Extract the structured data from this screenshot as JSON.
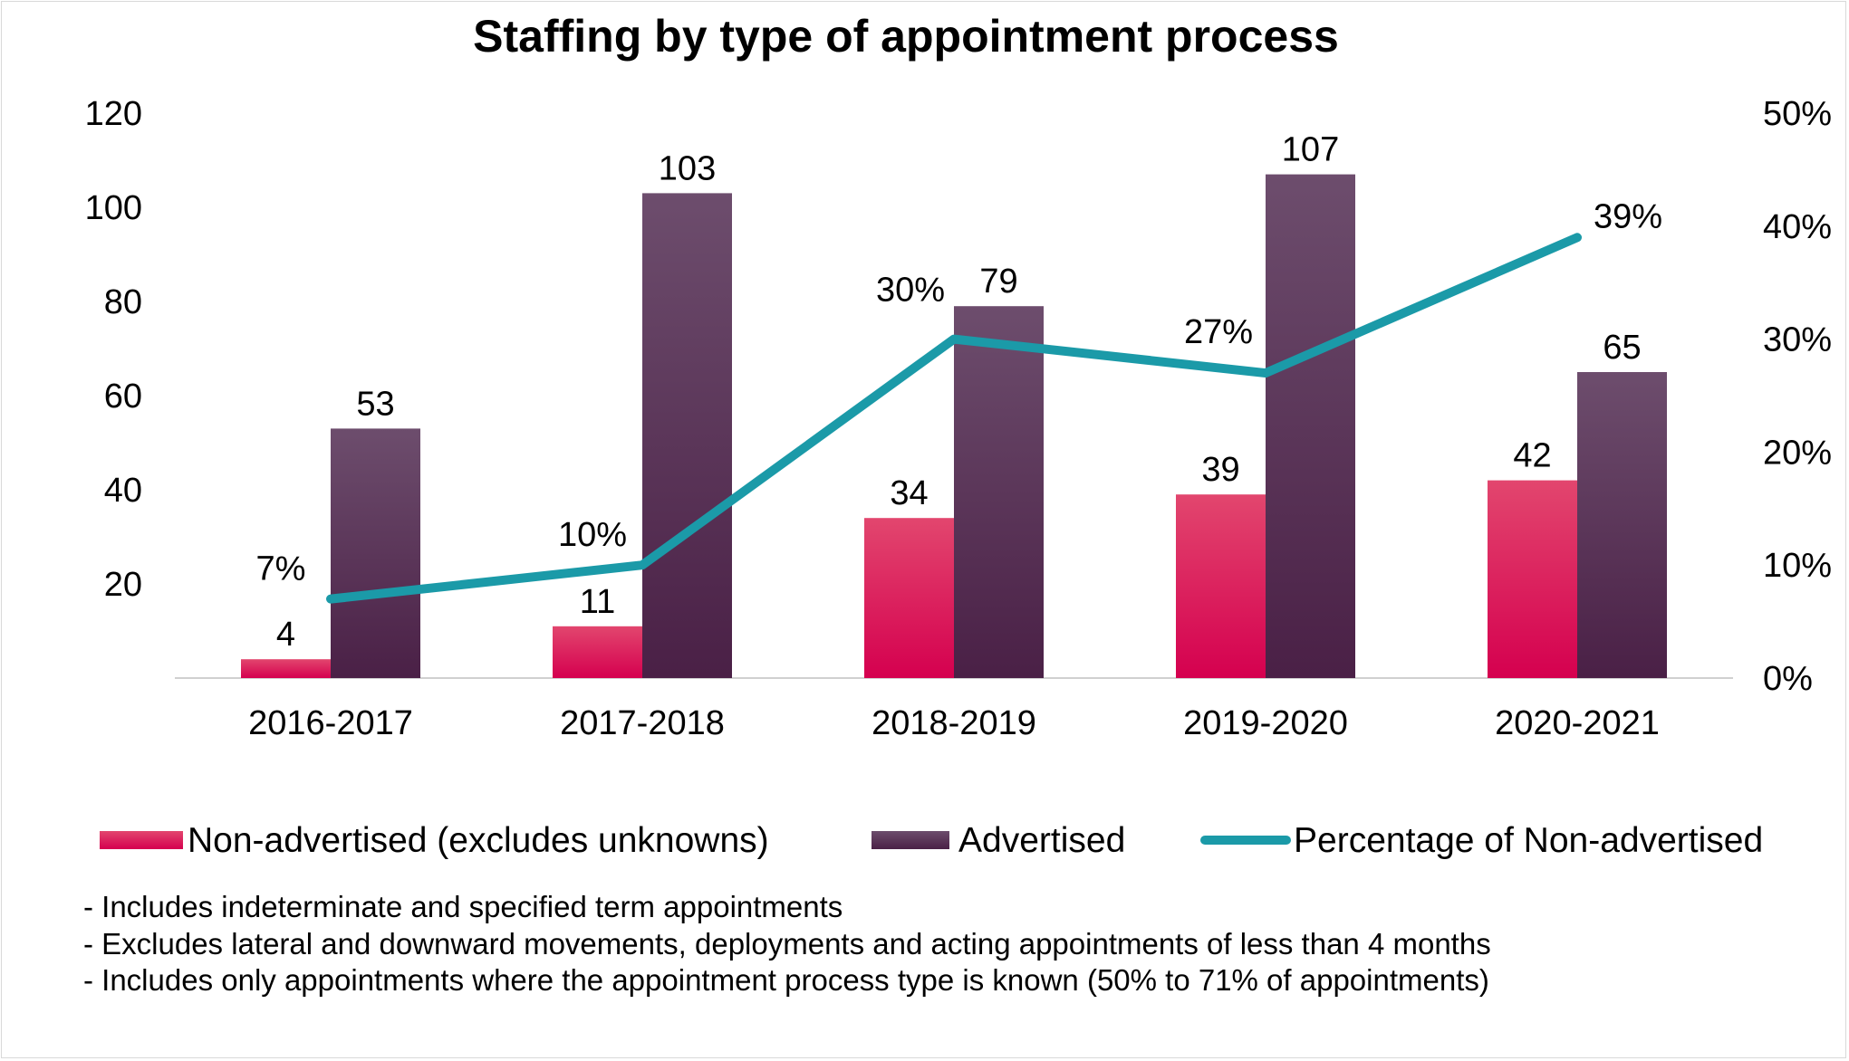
{
  "chart_data": {
    "type": "bar",
    "title": "Staffing by type of appointment process",
    "categories": [
      "2016-2017",
      "2017-2018",
      "2018-2019",
      "2019-2020",
      "2020-2021"
    ],
    "ylim": [
      0,
      120
    ],
    "yticks": [
      20,
      40,
      60,
      80,
      100,
      120
    ],
    "y2lim": [
      0,
      0.5
    ],
    "y2ticks": [
      "0%",
      "10%",
      "20%",
      "30%",
      "40%",
      "50%"
    ],
    "y2tick_values": [
      0,
      0.1,
      0.2,
      0.3,
      0.4,
      0.5
    ],
    "series": [
      {
        "name": "Non-advertised (excludes unknowns)",
        "type": "bar",
        "axis": "left",
        "values": [
          4,
          11,
          34,
          39,
          42
        ],
        "labels": [
          "4",
          "11",
          "34",
          "39",
          "42"
        ]
      },
      {
        "name": "Advertised",
        "type": "bar",
        "axis": "left",
        "values": [
          53,
          103,
          79,
          107,
          65
        ],
        "labels": [
          "53",
          "103",
          "79",
          "107",
          "65"
        ]
      },
      {
        "name": "Percentage of Non-advertised",
        "type": "line",
        "axis": "right",
        "values": [
          0.07,
          0.1,
          0.3,
          0.27,
          0.39
        ],
        "labels": [
          "7%",
          "10%",
          "30%",
          "27%",
          "39%"
        ]
      }
    ],
    "legend_position": "bottom",
    "notes": [
      "- Includes indeterminate and specified term appointments",
      "- Excludes lateral and downward movements, deployments and acting appointments of less than 4 months",
      "- Includes only appointments where the appointment process type is known (50% to 71% of appointments)"
    ]
  },
  "colors": {
    "non_advertised_top": "#e2466e",
    "non_advertised_bottom": "#d5004f",
    "advertised_top": "#6d4d6d",
    "advertised_bottom": "#4a2046",
    "line": "#1b9aa8",
    "axis": "#d0d0d0",
    "frame": "#d9d9d9"
  }
}
